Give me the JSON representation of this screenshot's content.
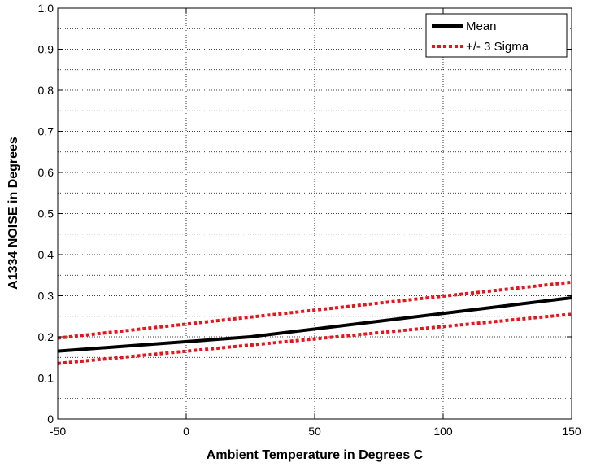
{
  "chart_data": {
    "type": "line",
    "title": "",
    "xlabel": "Ambient Temperature in Degrees C",
    "ylabel": "A1334 NOISE in Degrees",
    "xlim": [
      -50,
      150
    ],
    "ylim": [
      0,
      1.0
    ],
    "x_ticks": [
      "-50",
      "0",
      "50",
      "100",
      "150"
    ],
    "y_ticks": [
      "0",
      "0.1",
      "0.2",
      "0.3",
      "0.4",
      "0.5",
      "0.6",
      "0.7",
      "0.8",
      "0.9",
      "1.0"
    ],
    "grid": true,
    "legend_position": "top-right",
    "series": [
      {
        "name": "Mean",
        "color": "#000000",
        "style": "solid",
        "x": [
          -50,
          25,
          150
        ],
        "y": [
          0.165,
          0.2,
          0.295
        ]
      },
      {
        "name": "+/- 3 Sigma",
        "color": "#e8141c",
        "style": "dotted",
        "x": [
          -50,
          150
        ],
        "y": [
          0.197,
          0.333
        ]
      },
      {
        "name": "",
        "color": "#e8141c",
        "style": "dotted",
        "x": [
          -50,
          150
        ],
        "y": [
          0.135,
          0.255
        ]
      }
    ]
  }
}
